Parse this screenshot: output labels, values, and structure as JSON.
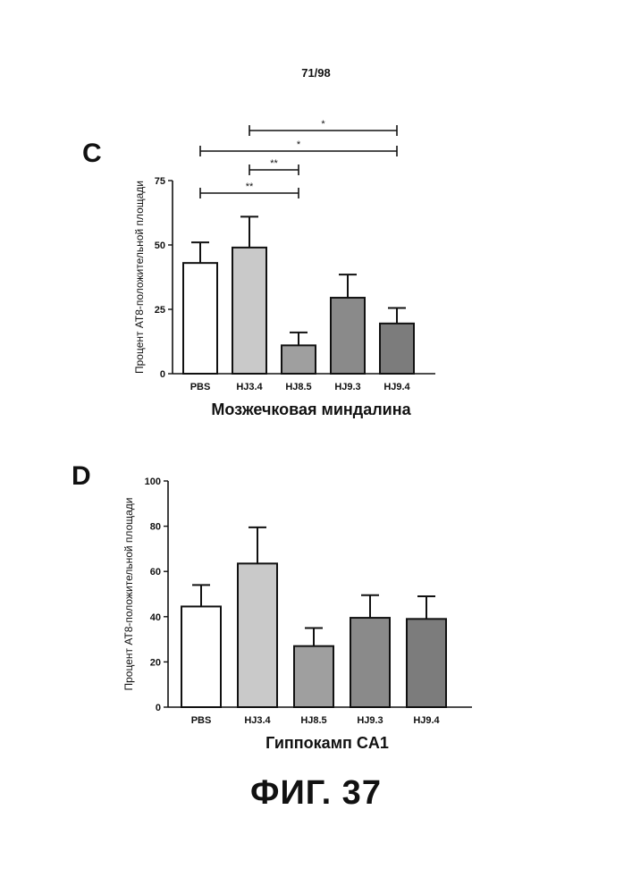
{
  "page_number": "71/98",
  "figure_caption": "ФИГ. 37",
  "chart_data": [
    {
      "panel": "C",
      "type": "bar",
      "categories": [
        "PBS",
        "HJ3.4",
        "HJ8.5",
        "HJ9.3",
        "HJ9.4"
      ],
      "values": [
        43,
        49,
        11,
        29.5,
        19.5
      ],
      "errors": [
        8,
        12,
        5,
        9,
        6
      ],
      "xlabel": "Мозжечковая миндалина",
      "ylabel": "Процент АТ8-положительной площади",
      "ylim": [
        0,
        75
      ],
      "yticks": [
        0,
        25,
        50,
        75
      ],
      "bar_colors": [
        "#ffffff",
        "#c9c9c9",
        "#9f9f9f",
        "#8a8a8a",
        "#7c7c7c"
      ],
      "significance": [
        {
          "from": 1,
          "to": 4,
          "label": "*"
        },
        {
          "from": 0,
          "to": 4,
          "label": "*"
        },
        {
          "from": 1,
          "to": 2,
          "label": "**"
        },
        {
          "from": 0,
          "to": 2,
          "label": "**"
        }
      ]
    },
    {
      "panel": "D",
      "type": "bar",
      "categories": [
        "PBS",
        "HJ3.4",
        "HJ8.5",
        "HJ9.3",
        "HJ9.4"
      ],
      "values": [
        44.5,
        63.5,
        27,
        39.5,
        39
      ],
      "errors": [
        9.5,
        16,
        8,
        10,
        10
      ],
      "xlabel": "Гиппокамп CA1",
      "ylabel": "Процент АТ8-положительной площади",
      "ylim": [
        0,
        100
      ],
      "yticks": [
        0,
        20,
        40,
        60,
        80,
        100
      ],
      "bar_colors": [
        "#ffffff",
        "#c9c9c9",
        "#9f9f9f",
        "#8a8a8a",
        "#7c7c7c"
      ],
      "significance": []
    }
  ]
}
